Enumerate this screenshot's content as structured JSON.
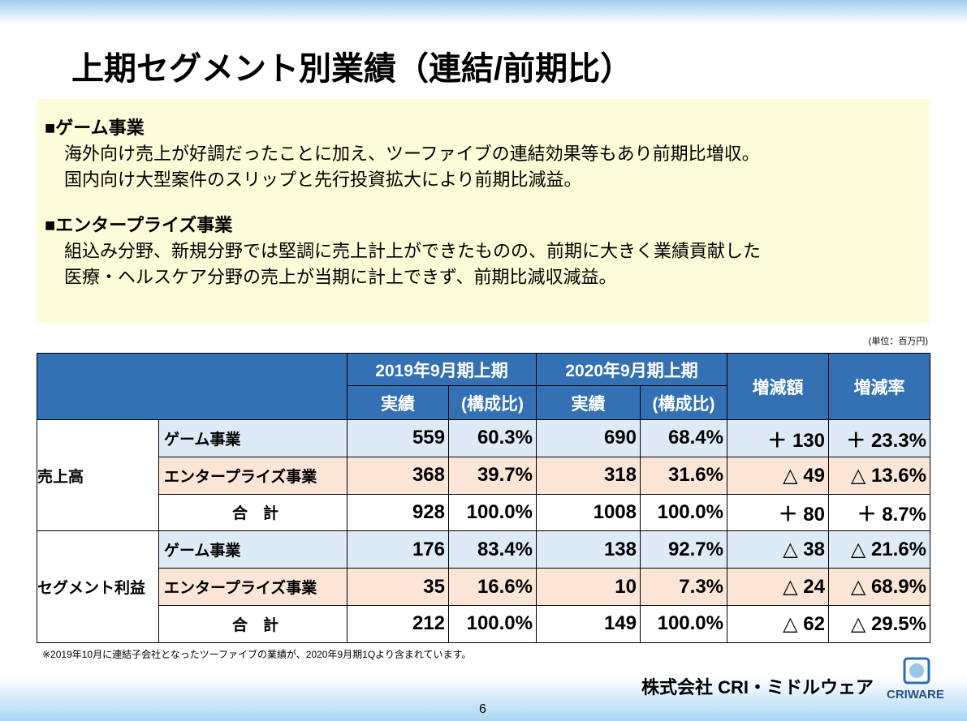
{
  "title": "上期セグメント別業績（連結/前期比）",
  "sections": [
    {
      "heading": "■ゲーム事業",
      "lines": [
        "海外向け売上が好調だったことに加え、ツーファイブの連結効果等もあり前期比増収。",
        "国内向け大型案件のスリップと先行投資拡大により前期比減益。"
      ]
    },
    {
      "heading": "■エンタープライズ事業",
      "lines": [
        "組込み分野、新規分野では堅調に売上計上ができたものの、前期に大きく業績貢献した",
        "医療・ヘルスケア分野の売上が当期に計上できず、前期比減収減益。"
      ]
    }
  ],
  "unit": "(単位：百万円)",
  "table": {
    "periods": [
      "2019年9月期上期",
      "2020年9月期上期"
    ],
    "subcols": [
      "実績",
      "(構成比)",
      "実績",
      "(構成比)"
    ],
    "change": [
      "増減額",
      "増減率"
    ],
    "groups": [
      {
        "label": "売上高",
        "rows": [
          {
            "item": "ゲーム事業",
            "cells": [
              "559",
              "60.3%",
              "690",
              "68.4%",
              "＋ 130",
              "＋ 23.3%"
            ]
          },
          {
            "item": "エンタープライズ事業",
            "cells": [
              "368",
              "39.7%",
              "318",
              "31.6%",
              "△ 49",
              "△ 13.6%"
            ]
          },
          {
            "item": "合　計",
            "cells": [
              "928",
              "100.0%",
              "1008",
              "100.0%",
              "＋ 80",
              "＋ 8.7%"
            ]
          }
        ]
      },
      {
        "label": "セグメント利益",
        "rows": [
          {
            "item": "ゲーム事業",
            "cells": [
              "176",
              "83.4%",
              "138",
              "92.7%",
              "△ 38",
              "△ 21.6%"
            ]
          },
          {
            "item": "エンタープライズ事業",
            "cells": [
              "35",
              "16.6%",
              "10",
              "7.3%",
              "△ 24",
              "△ 68.9%"
            ]
          },
          {
            "item": "合　計",
            "cells": [
              "212",
              "100.0%",
              "149",
              "100.0%",
              "△ 62",
              "△ 29.5%"
            ]
          }
        ]
      }
    ]
  },
  "footnote": "※2019年10月に連結子会社となったツーファイブの業績が、2020年9月期1Qより含まれています。",
  "company": "株式会社 CRI・ミドルウェア",
  "logo": "CRIWARE",
  "page": "6"
}
